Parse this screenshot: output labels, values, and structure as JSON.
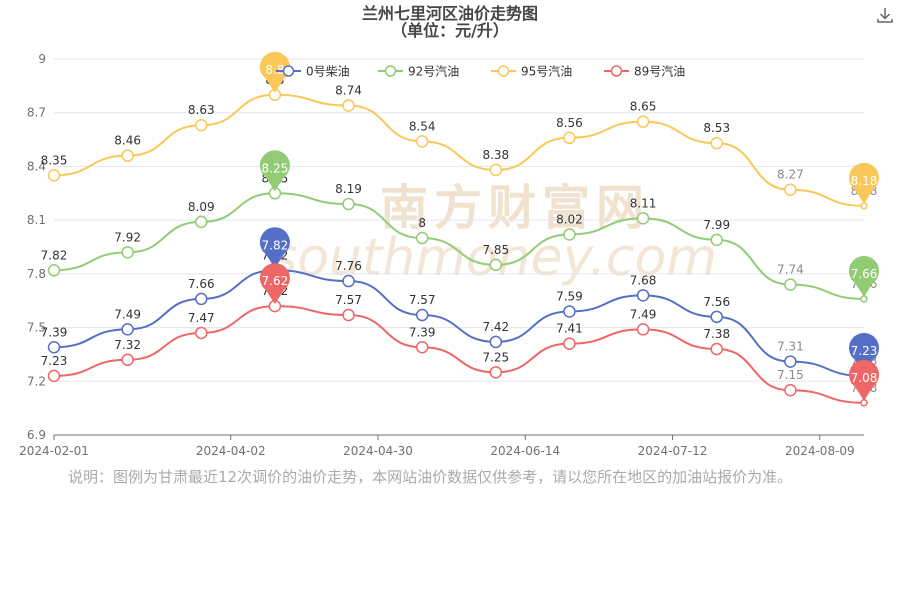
{
  "title": "兰州七里河区油价走势图",
  "subtitle": "（单位：元/升）",
  "note": "说明：图例为甘肃最近12次调价的油价走势，本网站油价数据仅供参考，请以您所在地区的加油站报价为准。",
  "watermark": {
    "brand": "南方财富网",
    "domain": "southmoney.com"
  },
  "download_icon": "download-icon",
  "chart_data": {
    "type": "line",
    "title": "兰州七里河区油价走势图",
    "subtitle": "（单位：元/升）",
    "xlabel": "",
    "ylabel": "",
    "ylim": [
      6.9,
      9
    ],
    "yticks": [
      6.9,
      7.2,
      7.5,
      7.8,
      8.1,
      8.4,
      8.7,
      9
    ],
    "xtick_labels": [
      "2024-02-01",
      "2024-04-02",
      "2024-04-30",
      "2024-06-14",
      "2024-07-12",
      "2024-08-09"
    ],
    "xtick_positions": [
      0,
      2.4,
      4.4,
      6.4,
      8.4,
      10.4
    ],
    "grid": true,
    "legend_position": "top",
    "series": [
      {
        "name": "0号柴油",
        "color": "#5470c6",
        "values": [
          7.39,
          7.49,
          7.66,
          7.82,
          7.76,
          7.57,
          7.42,
          7.59,
          7.68,
          7.56,
          7.31,
          7.23
        ],
        "labels": [
          "7.39",
          "7.49",
          "7.66",
          "7.82",
          "7.76",
          "7.57",
          "7.42",
          "7.59",
          "7.68",
          "7.56",
          "7.31",
          "7.23"
        ],
        "pin_labels": [
          "7.82",
          "7.23"
        ]
      },
      {
        "name": "92号汽油",
        "color": "#91cc75",
        "values": [
          7.82,
          7.92,
          8.09,
          8.25,
          8.19,
          8,
          7.85,
          8.02,
          8.11,
          7.99,
          7.74,
          7.66
        ],
        "labels": [
          "7.82",
          "7.92",
          "8.09",
          "8.25",
          "8.19",
          "8",
          "7.85",
          "8.02",
          "8.11",
          "7.99",
          "7.74",
          "7.66"
        ],
        "pin_labels": [
          "8.25",
          "7.66"
        ]
      },
      {
        "name": "95号汽油",
        "color": "#fac858",
        "values": [
          8.35,
          8.46,
          8.63,
          8.8,
          8.74,
          8.54,
          8.38,
          8.56,
          8.65,
          8.53,
          8.27,
          8.18
        ],
        "labels": [
          "8.35",
          "8.46",
          "8.63",
          "8.8",
          "8.74",
          "8.54",
          "8.38",
          "8.56",
          "8.65",
          "8.53",
          "8.27",
          "8.18"
        ],
        "pin_labels": [
          "8.8",
          "8.18"
        ]
      },
      {
        "name": "89号汽油",
        "color": "#ee6666",
        "values": [
          7.23,
          7.32,
          7.47,
          7.62,
          7.57,
          7.39,
          7.25,
          7.41,
          7.49,
          7.38,
          7.15,
          7.08
        ],
        "labels": [
          "7.23",
          "7.32",
          "7.47",
          "7.62",
          "7.57",
          "7.39",
          "7.25",
          "7.41",
          "7.49",
          "7.38",
          "7.15",
          "7.08"
        ],
        "pin_labels": [
          "7.62",
          "7.08"
        ]
      }
    ]
  }
}
